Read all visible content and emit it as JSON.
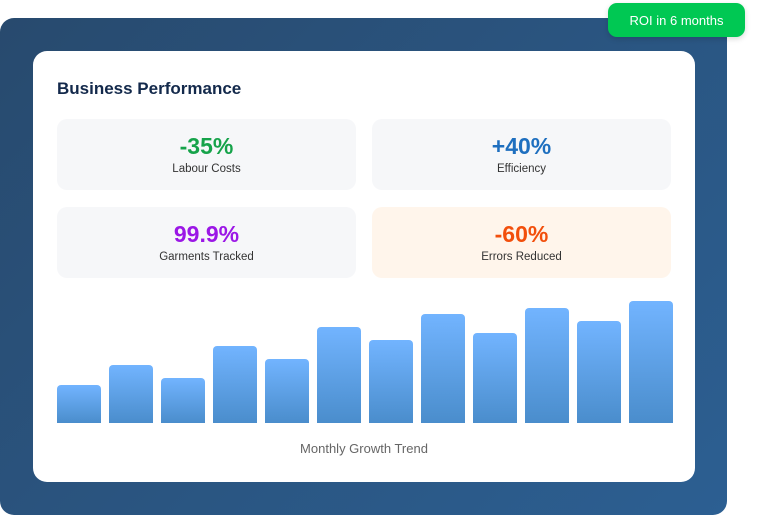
{
  "badge": "ROI in 6 months",
  "title": "Business Performance",
  "stats": [
    {
      "value": "-35%",
      "label": "Labour Costs",
      "color": "#16a34a",
      "bg": "#f6f7f9"
    },
    {
      "value": "+40%",
      "label": "Efficiency",
      "color": "#1e6fbf",
      "bg": "#f6f7f9"
    },
    {
      "value": "99.9%",
      "label": "Garments Tracked",
      "color": "#9b17e6",
      "bg": "#f6f7f9"
    },
    {
      "value": "-60%",
      "label": "Errors Reduced",
      "color": "#f24f0c",
      "bg": "#fff5eb"
    }
  ],
  "chart_data": {
    "type": "bar",
    "title": "Monthly Growth Trend",
    "values": [
      30,
      45,
      35,
      60,
      50,
      75,
      65,
      85,
      70,
      90,
      80,
      95
    ],
    "ylim": [
      0,
      100
    ]
  }
}
